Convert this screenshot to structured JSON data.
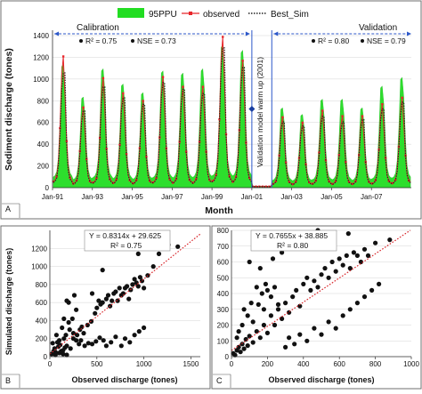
{
  "chart_data": [
    {
      "panel": "A",
      "type": "line",
      "xlabel": "Month",
      "ylabel": "Sediment discharge (tones)",
      "ylim": [
        0,
        1400
      ],
      "yticks": [
        0,
        200,
        400,
        600,
        800,
        1000,
        1200,
        1400
      ],
      "xlim": [
        "1991-01",
        "2008-12"
      ],
      "xticks": [
        "Jan-91",
        "Jan-93",
        "Jan-95",
        "Jan-97",
        "Jan-99",
        "Jan-01",
        "Jan-03",
        "Jan-05",
        "Jan-07"
      ],
      "grid": true,
      "legend_position": "top-center",
      "series": [
        {
          "name": "95PPU",
          "kind": "band",
          "color": "#22dd22"
        },
        {
          "name": "observed",
          "kind": "line-markers",
          "color": "#e8262b"
        },
        {
          "name": "Best_Sim",
          "kind": "dotted-line",
          "color": "#222222"
        }
      ],
      "annual_peaks": {
        "years": [
          1991,
          1992,
          1993,
          1994,
          1995,
          1996,
          1997,
          1998,
          1999,
          2000,
          2002,
          2003,
          2004,
          2005,
          2006,
          2007,
          2008
        ],
        "observed": [
          1200,
          730,
          1000,
          860,
          790,
          1010,
          920,
          920,
          1380,
          1160,
          640,
          590,
          700,
          650,
          650,
          760,
          820
        ],
        "best_sim": [
          1050,
          700,
          920,
          820,
          760,
          960,
          900,
          860,
          1280,
          1100,
          600,
          560,
          650,
          600,
          620,
          720,
          780
        ],
        "band_upper": [
          1120,
          820,
          1080,
          940,
          860,
          1060,
          1040,
          1080,
          1300,
          1250,
          720,
          660,
          800,
          800,
          720,
          920,
          1000
        ]
      },
      "periods": [
        {
          "label": "Calibration",
          "start": "1991-01",
          "end": "2001-01",
          "stats": {
            "r2_label": "R² = 0.75",
            "nse_label": "NSE = 0.73"
          }
        },
        {
          "label": "Validation",
          "start": "2002-01",
          "end": "2008-12",
          "stats": {
            "r2_label": "R² = 0.80",
            "nse_label": "NSE = 0.79"
          }
        }
      ],
      "annotations": [
        "Validation model warm up (2001)"
      ]
    },
    {
      "panel": "B",
      "type": "scatter",
      "xlabel": "Observed discharge (tones)",
      "ylabel": "Simulated discharge (tones)",
      "xlim": [
        0,
        1600
      ],
      "ylim": [
        0,
        1400
      ],
      "xticks": [
        0,
        500,
        1000,
        1500
      ],
      "yticks": [
        0,
        200,
        400,
        600,
        800,
        1000,
        1200
      ],
      "trendline": {
        "slope": 0.8314,
        "intercept": 29.625,
        "equation_label": "Y = 0.8314x + 29.625",
        "r2_label": "R² = 0.75",
        "style": "red-dotted"
      },
      "points": [
        [
          20,
          30
        ],
        [
          40,
          60
        ],
        [
          60,
          20
        ],
        [
          90,
          110
        ],
        [
          120,
          60
        ],
        [
          150,
          200
        ],
        [
          180,
          120
        ],
        [
          220,
          90
        ],
        [
          250,
          260
        ],
        [
          280,
          180
        ],
        [
          310,
          140
        ],
        [
          340,
          330
        ],
        [
          30,
          150
        ],
        [
          70,
          240
        ],
        [
          100,
          180
        ],
        [
          130,
          320
        ],
        [
          160,
          100
        ],
        [
          200,
          380
        ],
        [
          240,
          420
        ],
        [
          280,
          520
        ],
        [
          320,
          300
        ],
        [
          360,
          260
        ],
        [
          400,
          350
        ],
        [
          440,
          390
        ],
        [
          480,
          480
        ],
        [
          520,
          620
        ],
        [
          560,
          600
        ],
        [
          600,
          640
        ],
        [
          640,
          560
        ],
        [
          680,
          700
        ],
        [
          720,
          620
        ],
        [
          760,
          680
        ],
        [
          800,
          760
        ],
        [
          840,
          640
        ],
        [
          880,
          800
        ],
        [
          920,
          820
        ],
        [
          960,
          880
        ],
        [
          1000,
          760
        ],
        [
          1040,
          900
        ],
        [
          1100,
          1000
        ],
        [
          1160,
          1140
        ],
        [
          1260,
          1240
        ],
        [
          1360,
          1220
        ],
        [
          500,
          540
        ],
        [
          540,
          580
        ],
        [
          620,
          680
        ],
        [
          660,
          620
        ],
        [
          700,
          720
        ],
        [
          740,
          760
        ],
        [
          780,
          700
        ],
        [
          820,
          780
        ],
        [
          860,
          740
        ],
        [
          900,
          860
        ],
        [
          940,
          780
        ],
        [
          980,
          840
        ],
        [
          50,
          90
        ],
        [
          80,
          160
        ],
        [
          110,
          130
        ],
        [
          140,
          70
        ],
        [
          170,
          240
        ],
        [
          210,
          300
        ],
        [
          250,
          200
        ],
        [
          290,
          240
        ],
        [
          330,
          180
        ],
        [
          370,
          120
        ],
        [
          410,
          150
        ],
        [
          450,
          140
        ],
        [
          490,
          170
        ],
        [
          530,
          210
        ],
        [
          570,
          180
        ],
        [
          200,
          600
        ],
        [
          260,
          680
        ],
        [
          450,
          700
        ],
        [
          150,
          420
        ],
        [
          560,
          960
        ],
        [
          940,
          1140
        ],
        [
          180,
          620
        ],
        [
          600,
          120
        ],
        [
          650,
          160
        ],
        [
          700,
          220
        ],
        [
          760,
          120
        ],
        [
          800,
          200
        ],
        [
          850,
          160
        ],
        [
          900,
          240
        ],
        [
          950,
          280
        ],
        [
          1000,
          320
        ],
        [
          60,
          50
        ],
        [
          100,
          40
        ],
        [
          140,
          30
        ],
        [
          180,
          20
        ]
      ]
    },
    {
      "panel": "C",
      "type": "scatter",
      "xlabel": "Observed discharge (tones)",
      "ylabel": "",
      "xlim": [
        0,
        1000
      ],
      "ylim": [
        0,
        800
      ],
      "xticks": [
        0,
        200,
        400,
        600,
        800,
        1000
      ],
      "yticks": [
        0,
        100,
        200,
        300,
        400,
        500,
        600,
        700,
        800
      ],
      "trendline": {
        "slope": 0.7655,
        "intercept": 38.885,
        "equation_label": "Y = 0.7655x + 38.885",
        "r2_label": "R² = 0.80",
        "style": "red-dotted"
      },
      "points": [
        [
          10,
          20
        ],
        [
          20,
          10
        ],
        [
          30,
          40
        ],
        [
          40,
          60
        ],
        [
          50,
          30
        ],
        [
          60,
          80
        ],
        [
          70,
          50
        ],
        [
          80,
          110
        ],
        [
          90,
          70
        ],
        [
          100,
          130
        ],
        [
          120,
          90
        ],
        [
          140,
          160
        ],
        [
          160,
          120
        ],
        [
          180,
          200
        ],
        [
          200,
          150
        ],
        [
          220,
          260
        ],
        [
          240,
          200
        ],
        [
          260,
          300
        ],
        [
          280,
          240
        ],
        [
          300,
          340
        ],
        [
          320,
          280
        ],
        [
          340,
          380
        ],
        [
          360,
          420
        ],
        [
          380,
          320
        ],
        [
          400,
          460
        ],
        [
          420,
          500
        ],
        [
          440,
          420
        ],
        [
          460,
          480
        ],
        [
          480,
          440
        ],
        [
          500,
          520
        ],
        [
          520,
          560
        ],
        [
          540,
          500
        ],
        [
          560,
          600
        ],
        [
          580,
          540
        ],
        [
          600,
          620
        ],
        [
          620,
          580
        ],
        [
          640,
          640
        ],
        [
          660,
          560
        ],
        [
          680,
          660
        ],
        [
          700,
          640
        ],
        [
          720,
          600
        ],
        [
          740,
          680
        ],
        [
          760,
          640
        ],
        [
          800,
          720
        ],
        [
          880,
          740
        ],
        [
          30,
          120
        ],
        [
          60,
          200
        ],
        [
          90,
          260
        ],
        [
          120,
          220
        ],
        [
          150,
          330
        ],
        [
          180,
          300
        ],
        [
          200,
          420
        ],
        [
          220,
          380
        ],
        [
          240,
          440
        ],
        [
          260,
          330
        ],
        [
          300,
          60
        ],
        [
          320,
          120
        ],
        [
          350,
          80
        ],
        [
          380,
          140
        ],
        [
          420,
          100
        ],
        [
          460,
          180
        ],
        [
          500,
          140
        ],
        [
          540,
          220
        ],
        [
          580,
          180
        ],
        [
          620,
          260
        ],
        [
          660,
          300
        ],
        [
          700,
          340
        ],
        [
          740,
          380
        ],
        [
          780,
          420
        ],
        [
          820,
          460
        ],
        [
          40,
          160
        ],
        [
          70,
          300
        ],
        [
          110,
          340
        ],
        [
          140,
          440
        ],
        [
          170,
          400
        ],
        [
          190,
          460
        ],
        [
          100,
          600
        ],
        [
          160,
          560
        ],
        [
          230,
          620
        ],
        [
          280,
          660
        ],
        [
          330,
          720
        ],
        [
          400,
          780
        ],
        [
          480,
          800
        ],
        [
          560,
          760
        ],
        [
          650,
          780
        ]
      ]
    }
  ]
}
